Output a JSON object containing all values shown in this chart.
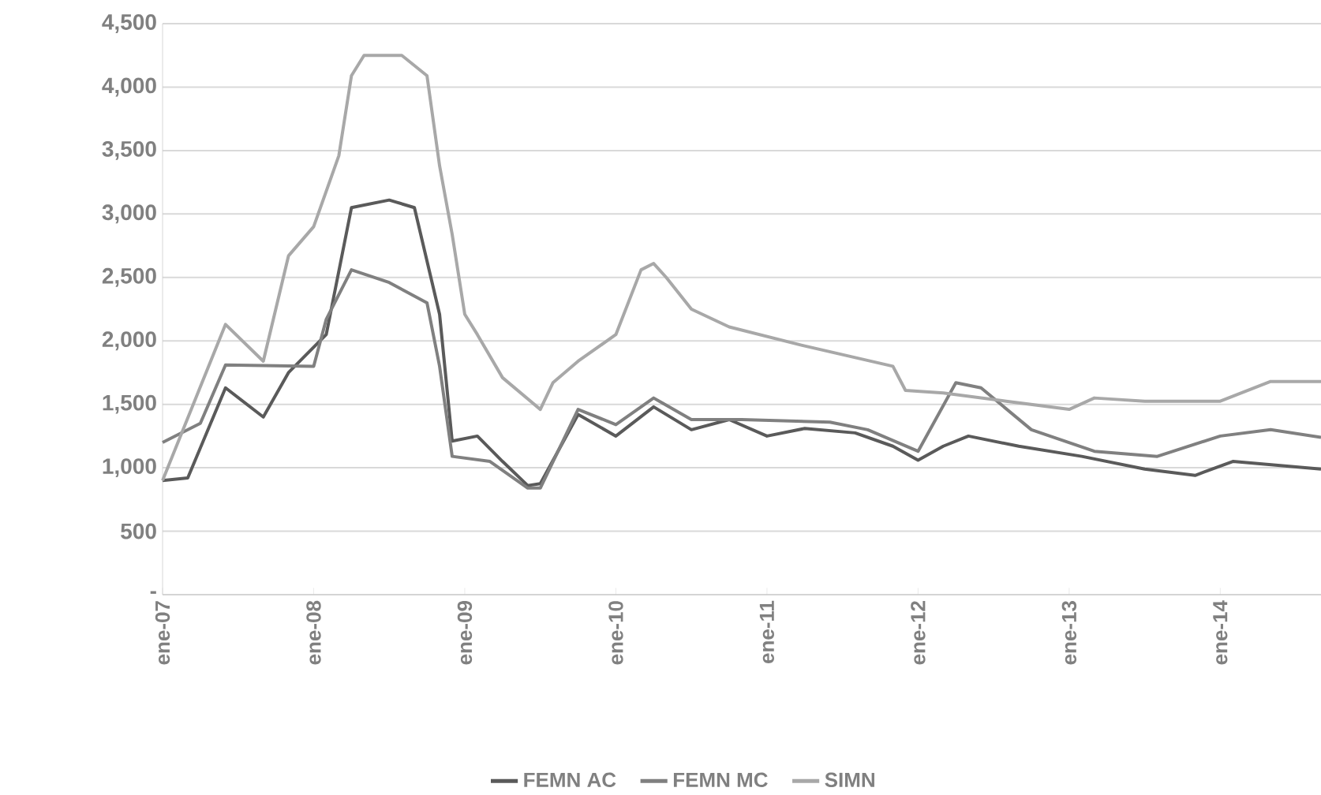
{
  "chart_data": {
    "type": "line",
    "xlim": [
      "2007-01",
      "2014-09"
    ],
    "xticks": [
      {
        "value": "2007-01",
        "label": "ene-07"
      },
      {
        "value": "2008-01",
        "label": "ene-08"
      },
      {
        "value": "2009-01",
        "label": "ene-09"
      },
      {
        "value": "2010-01",
        "label": "ene-10"
      },
      {
        "value": "2011-01",
        "label": "ene-11"
      },
      {
        "value": "2012-01",
        "label": "ene-12"
      },
      {
        "value": "2013-01",
        "label": "ene-13"
      },
      {
        "value": "2014-01",
        "label": "ene-14"
      }
    ],
    "ylim": [
      0,
      4500
    ],
    "yticks": [
      {
        "value": 0,
        "label": "-"
      },
      500,
      {
        "value": 1000,
        "label": "1,000"
      },
      {
        "value": 1500,
        "label": "1,500"
      },
      {
        "value": 2000,
        "label": "2,000"
      },
      {
        "value": 2500,
        "label": "2,500"
      },
      {
        "value": 3000,
        "label": "3,000"
      },
      {
        "value": 3500,
        "label": "3,500"
      },
      {
        "value": 4000,
        "label": "4,000"
      },
      {
        "value": 4500,
        "label": "4,500"
      }
    ],
    "grid": "y",
    "legend": "bottom",
    "line_style": "solid",
    "marker": "none",
    "series": [
      {
        "name": "FEMN AC",
        "color": "#5a5a5a",
        "x": [
          "2007-01",
          "2007-03",
          "2007-06",
          "2007-09",
          "2007-11",
          "2008-02",
          "2008-04",
          "2008-07",
          "2008-09",
          "2008-11",
          "2008-12",
          "2009-02",
          "2009-04",
          "2009-06",
          "2009-07",
          "2009-10",
          "2010-01",
          "2010-04",
          "2010-07",
          "2010-10",
          "2011-01",
          "2011-04",
          "2011-08",
          "2011-11",
          "2012-01",
          "2012-03",
          "2012-05",
          "2012-09",
          "2013-02",
          "2013-07",
          "2013-11",
          "2014-02",
          "2014-09"
        ],
        "values": [
          900,
          920,
          1630,
          1400,
          1750,
          2050,
          3050,
          3110,
          3050,
          2210,
          1210,
          1250,
          1050,
          860,
          875,
          1420,
          1250,
          1480,
          1300,
          1380,
          1250,
          1310,
          1275,
          1170,
          1060,
          1170,
          1250,
          1170,
          1090,
          990,
          940,
          1050,
          990
        ]
      },
      {
        "name": "FEMN MC",
        "color": "#808080",
        "x": [
          "2007-01",
          "2007-04",
          "2007-06",
          "2008-01",
          "2008-02",
          "2008-04",
          "2008-07",
          "2008-10",
          "2008-11",
          "2008-12",
          "2009-03",
          "2009-06",
          "2009-07",
          "2009-10",
          "2010-01",
          "2010-04",
          "2010-07",
          "2010-11",
          "2011-06",
          "2011-09",
          "2012-01",
          "2012-04",
          "2012-06",
          "2012-10",
          "2013-03",
          "2013-08",
          "2014-01",
          "2014-05",
          "2014-09"
        ],
        "values": [
          1200,
          1350,
          1810,
          1800,
          2170,
          2560,
          2460,
          2300,
          1800,
          1090,
          1050,
          840,
          840,
          1460,
          1340,
          1550,
          1380,
          1380,
          1360,
          1300,
          1130,
          1670,
          1630,
          1300,
          1130,
          1090,
          1250,
          1300,
          1240
        ]
      },
      {
        "name": "SIMN",
        "color": "#a8a8a8",
        "x": [
          "2007-01",
          "2007-06",
          "2007-09",
          "2007-11",
          "2008-01",
          "2008-03",
          "2008-04",
          "2008-05",
          "2008-08",
          "2008-10",
          "2008-11",
          "2008-12",
          "2009-01",
          "2009-02",
          "2009-04",
          "2009-07",
          "2009-08",
          "2009-10",
          "2010-01",
          "2010-03",
          "2010-04",
          "2010-05",
          "2010-07",
          "2010-10",
          "2011-04",
          "2011-11",
          "2011-12",
          "2012-03",
          "2012-08",
          "2013-01",
          "2013-03",
          "2013-07",
          "2014-01",
          "2014-05",
          "2014-09"
        ],
        "values": [
          900,
          2130,
          1840,
          2670,
          2900,
          3460,
          4090,
          4250,
          4250,
          4090,
          3380,
          2840,
          2210,
          2050,
          1710,
          1460,
          1670,
          1840,
          2050,
          2560,
          2610,
          2500,
          2250,
          2110,
          1960,
          1800,
          1610,
          1590,
          1525,
          1460,
          1550,
          1525,
          1525,
          1680,
          1680
        ]
      }
    ]
  }
}
